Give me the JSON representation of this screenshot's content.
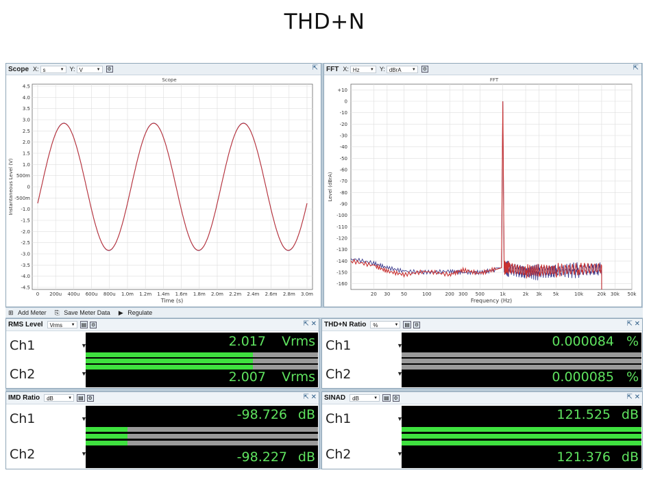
{
  "page_title": "THD+N",
  "scope": {
    "title": "Scope",
    "x_label": "X:",
    "x_unit": "s",
    "y_label": "Y:",
    "y_unit": "V",
    "chart_title": "Scope",
    "ylabel": "Instantaneous Level (V)",
    "xlabel": "Time (s)"
  },
  "fft": {
    "title": "FFT",
    "x_label": "X:",
    "x_unit": "Hz",
    "y_label": "Y:",
    "y_unit": "dBrA",
    "chart_title": "FFT",
    "ylabel": "Level (dBrA)",
    "xlabel": "Frequency (Hz)"
  },
  "meter_toolbar": {
    "add_meter": "Add Meter",
    "save_meter_data": "Save Meter Data",
    "regulate": "Regulate"
  },
  "meters": [
    {
      "title": "RMS Level",
      "unit_select": "Vrms",
      "ch1": {
        "label": "Ch1",
        "value": "2.017",
        "unit": "Vrms",
        "bar": 0.72
      },
      "ch2": {
        "label": "Ch2",
        "value": "2.007",
        "unit": "Vrms",
        "bar": 0.72
      }
    },
    {
      "title": "THD+N Ratio",
      "unit_select": "%",
      "ch1": {
        "label": "Ch1",
        "value": "0.000084",
        "unit": "%",
        "bar": 0.0
      },
      "ch2": {
        "label": "Ch2",
        "value": "0.000085",
        "unit": "%",
        "bar": 0.0
      }
    },
    {
      "title": "IMD Ratio",
      "unit_select": "dB",
      "ch1": {
        "label": "Ch1",
        "value": "-98.726",
        "unit": "dB",
        "bar": 0.18
      },
      "ch2": {
        "label": "Ch2",
        "value": "-98.227",
        "unit": "dB",
        "bar": 0.18
      }
    },
    {
      "title": "SINAD",
      "unit_select": "dB",
      "ch1": {
        "label": "Ch1",
        "value": "121.525",
        "unit": "dB",
        "bar": 1.0
      },
      "ch2": {
        "label": "Ch2",
        "value": "121.376",
        "unit": "dB",
        "bar": 1.0
      }
    }
  ],
  "colors": {
    "trace_ch1": "#3a3a8c",
    "trace_ch2": "#c83232",
    "meter_green": "#3fe13f",
    "meter_text": "#5fe35f"
  },
  "chart_data": [
    {
      "type": "line",
      "title": "Scope",
      "xlabel": "Time (s)",
      "ylabel": "Instantaneous Level (V)",
      "xlim": [
        0,
        0.003
      ],
      "ylim": [
        -4.5,
        4.5
      ],
      "x_ticks": [
        "0",
        "200u",
        "400u",
        "600u",
        "800u",
        "1.0m",
        "1.2m",
        "1.4m",
        "1.6m",
        "1.8m",
        "2.0m",
        "2.2m",
        "2.4m",
        "2.6m",
        "2.8m",
        "3.0m"
      ],
      "y_ticks": [
        "4.5",
        "4.0",
        "3.5",
        "3.0",
        "2.5",
        "2.0",
        "1.5",
        "1.0",
        "500m",
        "0",
        "-500m",
        "-1.0",
        "-1.5",
        "-2.0",
        "-2.5",
        "-3.0",
        "-3.5",
        "-4.0",
        "-4.5"
      ],
      "grid": true,
      "series": [
        {
          "amplitude": 2.85,
          "frequency_hz": 1000,
          "phase_deg": -15
        },
        {
          "amplitude": 2.84,
          "frequency_hz": 1000,
          "phase_deg": -15
        }
      ]
    },
    {
      "type": "line",
      "title": "FFT",
      "xlabel": "Frequency (Hz)",
      "ylabel": "Level (dBrA)",
      "xscale": "log",
      "xlim": [
        10,
        50000
      ],
      "ylim": [
        -165,
        15
      ],
      "x_ticks": [
        "20",
        "30",
        "50",
        "100",
        "200",
        "300",
        "500",
        "1k",
        "2k",
        "3k",
        "5k",
        "10k",
        "20k",
        "30k",
        "50k"
      ],
      "y_ticks": [
        "+10",
        "0",
        "-10",
        "-20",
        "-30",
        "-40",
        "-50",
        "-60",
        "-70",
        "-80",
        "-90",
        "-100",
        "-110",
        "-120",
        "-130",
        "-140",
        "-150",
        "-160"
      ],
      "grid": true,
      "series": [
        {
          "points": [
            [
              10,
              -138
            ],
            [
              20,
              -142
            ],
            [
              30,
              -146
            ],
            [
              50,
              -149
            ],
            [
              100,
              -150
            ],
            [
              200,
              -149
            ],
            [
              300,
              -150
            ],
            [
              500,
              -150
            ],
            [
              800,
              -148
            ],
            [
              1000,
              0
            ],
            [
              1200,
              -147
            ],
            [
              2000,
              -150
            ],
            [
              3000,
              -150
            ],
            [
              5000,
              -149
            ],
            [
              10000,
              -148
            ],
            [
              20000,
              -147
            ]
          ]
        },
        {
          "points": [
            [
              10,
              -140
            ],
            [
              20,
              -144
            ],
            [
              30,
              -149
            ],
            [
              50,
              -152
            ],
            [
              100,
              -149
            ],
            [
              200,
              -152
            ],
            [
              300,
              -148
            ],
            [
              500,
              -151
            ],
            [
              800,
              -147
            ],
            [
              1000,
              0
            ],
            [
              1200,
              -146
            ],
            [
              2000,
              -149
            ],
            [
              3000,
              -148
            ],
            [
              5000,
              -148
            ],
            [
              10000,
              -147
            ],
            [
              20000,
              -146
            ]
          ]
        }
      ]
    }
  ]
}
